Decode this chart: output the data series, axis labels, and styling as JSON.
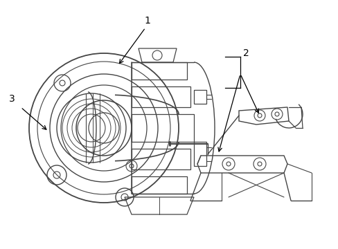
{
  "background_color": "#ffffff",
  "line_color": "#444444",
  "line_width": 1.0,
  "label_1": "1",
  "label_2": "2",
  "label_3": "3",
  "figsize": [
    4.89,
    3.6
  ],
  "dpi": 100
}
